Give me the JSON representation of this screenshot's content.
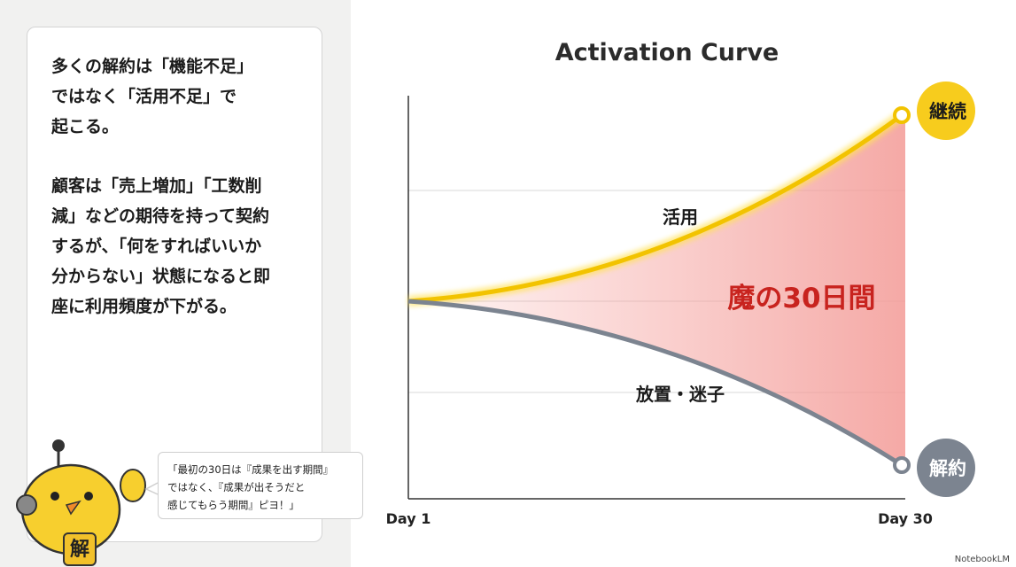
{
  "panel": {
    "paragraphs": [
      [
        "多くの解約は「機能不足」",
        "ではなく「活用不足」で",
        "起こる。"
      ],
      [
        "顧客は「売上増加」「工数削",
        "減」などの期待を持って契約",
        "するが、「何をすればいいか",
        "分からない」状態になると即",
        "座に利用頻度が下がる。"
      ]
    ]
  },
  "bubble": {
    "lines": [
      "「最初の30日は『成果を出す期間』",
      "ではなく、『成果が出そうだと",
      "感じてもらう期間』ピヨ！」"
    ]
  },
  "mascot": {
    "badge": "解"
  },
  "diagram": {
    "title": "Activation Curve",
    "x_start": "Day 1",
    "x_end": "Day 30",
    "upper_label": "活用",
    "gap_label": "魔の30日間",
    "lower_label": "放置・迷子",
    "upper_end": "継続",
    "lower_end": "解約"
  },
  "footer": {
    "brand": "NotebookLM"
  }
}
